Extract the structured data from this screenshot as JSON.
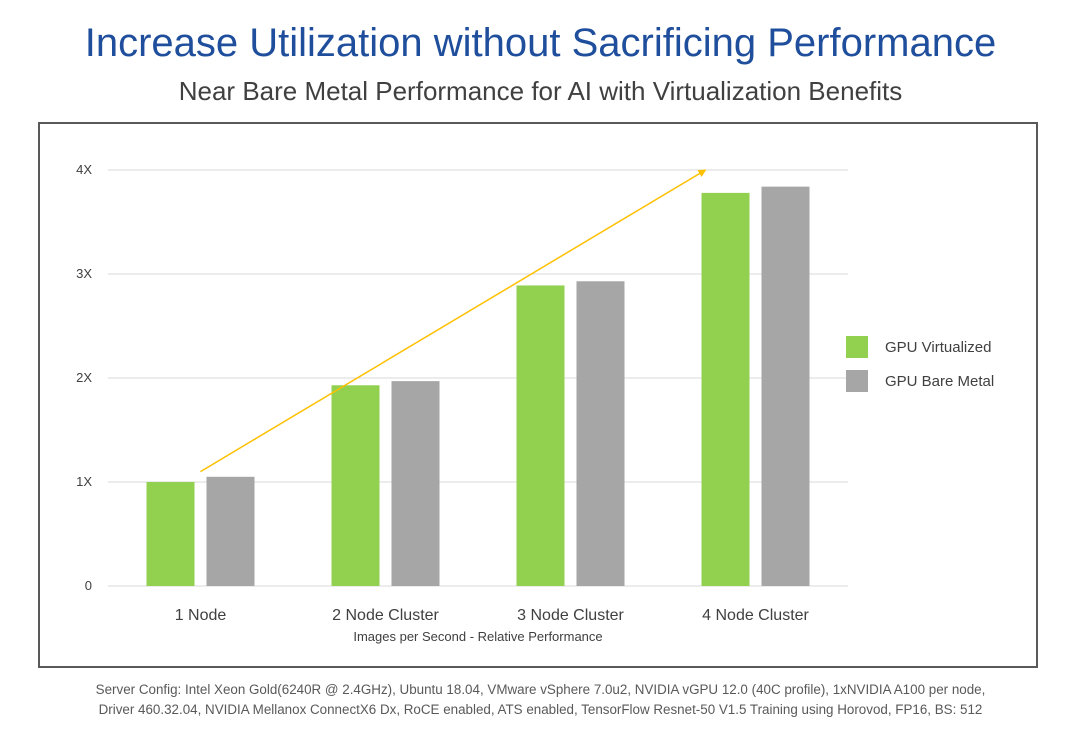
{
  "page": {
    "title": "Increase Utilization without Sacrificing Performance",
    "subtitle": "Near Bare Metal Performance for AI with Virtualization Benefits",
    "footnote_line1": "Server Config: Intel Xeon Gold(6240R @ 2.4GHz), Ubuntu 18.04, VMware vSphere 7.0u2, NVIDIA vGPU 12.0 (40C profile), 1xNVIDIA A100 per node,",
    "footnote_line2": "Driver 460.32.04, NVIDIA Mellanox ConnectX6 Dx, RoCE enabled, ATS enabled, TensorFlow Resnet-50 V1.5 Training using Horovod, FP16, BS: 512"
  },
  "chart_data": {
    "type": "bar",
    "title": "",
    "xlabel": "Images per Second - Relative Performance",
    "ylabel": "",
    "categories": [
      "1 Node",
      "2 Node Cluster",
      "3 Node Cluster",
      "4 Node Cluster"
    ],
    "series": [
      {
        "name": "GPU Virtualized",
        "color": "#92d050",
        "values": [
          1.0,
          1.93,
          2.89,
          3.78
        ]
      },
      {
        "name": "GPU Bare Metal",
        "color": "#a6a6a6",
        "values": [
          1.05,
          1.97,
          2.93,
          3.84
        ]
      }
    ],
    "ylim": [
      0,
      4
    ],
    "yticks": [
      0,
      1,
      2,
      3,
      4
    ],
    "ytick_labels": [
      "0",
      "1X",
      "2X",
      "3X",
      "4X"
    ],
    "grid": true,
    "legend_position": "right",
    "annotation": {
      "type": "trend-arrow",
      "color": "#ffc000",
      "from": [
        0,
        1.1
      ],
      "to": [
        3,
        4.0
      ]
    }
  }
}
